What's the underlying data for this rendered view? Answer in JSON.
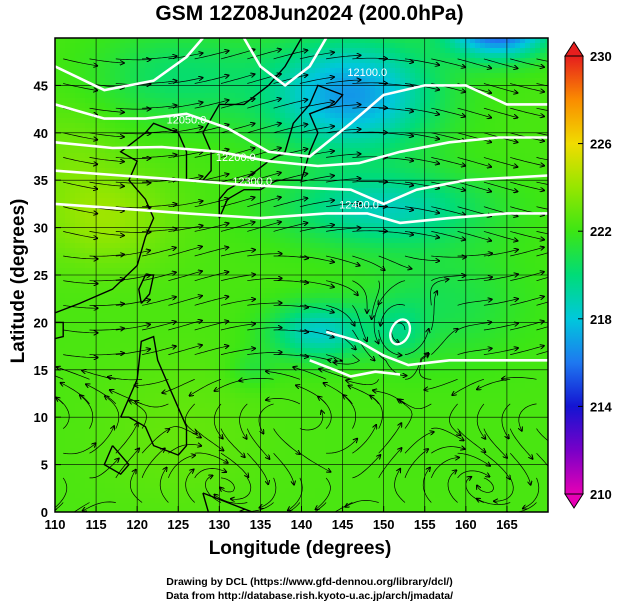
{
  "title": "GSM 12Z08Jun2024 (200.0hPa)",
  "x_axis_title": "Longitude (degrees)",
  "y_axis_title": "Latitude  (degrees)",
  "credit_lines": [
    "Drawing by DCL (https://www.gfd-dennou.org/library/dcl/)",
    "Data from http://database.rish.kyoto-u.ac.jp/arch/jmadata/"
  ],
  "chart_data": {
    "type": "heatmap",
    "x_label": "Longitude (degrees)",
    "y_label": "Latitude  (degrees)",
    "x_range": [
      110,
      170
    ],
    "y_range": [
      0,
      50
    ],
    "x_ticks": [
      110,
      115,
      120,
      125,
      130,
      135,
      140,
      145,
      150,
      155,
      160,
      165
    ],
    "y_ticks": [
      0,
      5,
      10,
      15,
      20,
      25,
      30,
      35,
      40,
      45
    ],
    "colorbar": {
      "min": 210,
      "max": 230,
      "ticks": [
        210,
        214,
        218,
        222,
        226,
        230
      ],
      "stops": [
        {
          "value": 210,
          "color": "#e600b4"
        },
        {
          "value": 212,
          "color": "#7800c8"
        },
        {
          "value": 214,
          "color": "#1414d2"
        },
        {
          "value": 216,
          "color": "#1e78f0"
        },
        {
          "value": 218,
          "color": "#00c8dc"
        },
        {
          "value": 220,
          "color": "#00dc78"
        },
        {
          "value": 222,
          "color": "#3ce614"
        },
        {
          "value": 224,
          "color": "#96e600"
        },
        {
          "value": 226,
          "color": "#f0dc00"
        },
        {
          "value": 228,
          "color": "#fa8c00"
        },
        {
          "value": 230,
          "color": "#e61e1e"
        }
      ]
    },
    "contour_labels": [
      {
        "text": "12100.0",
        "lon": 148,
        "lat": 46
      },
      {
        "text": "12050.0",
        "lon": 126,
        "lat": 41
      },
      {
        "text": "12200.0",
        "lon": 132,
        "lat": 37
      },
      {
        "text": "12300.0",
        "lon": 134,
        "lat": 34.5
      },
      {
        "text": "12400.0",
        "lon": 147,
        "lat": 32
      }
    ],
    "vortex_center": {
      "lon": 152,
      "lat": 19
    }
  }
}
